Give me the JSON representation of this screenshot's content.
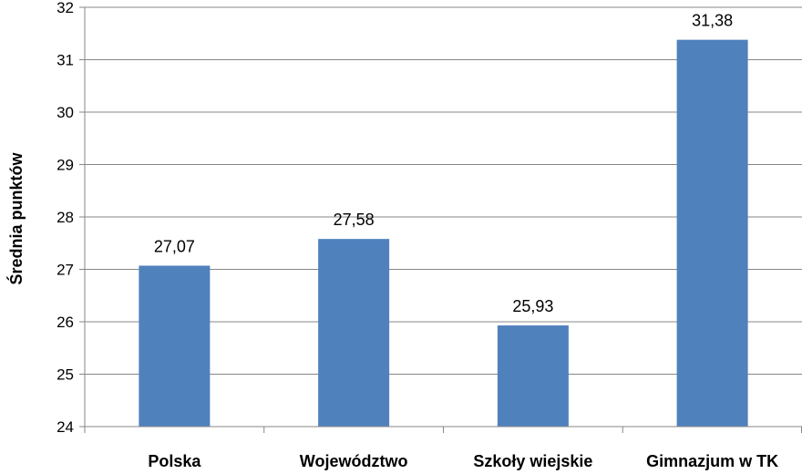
{
  "chart_data": {
    "type": "bar",
    "categories": [
      "Polska",
      "Województwo",
      "Szkoły wiejskie",
      "Gimnazjum w TK"
    ],
    "values": [
      27.07,
      27.58,
      25.93,
      31.38
    ],
    "data_labels": [
      "27,07",
      "27,58",
      "25,93",
      "31,38"
    ],
    "ylabel": "Średnia punktów",
    "xlabel": "",
    "title": "",
    "ylim": [
      24,
      32
    ],
    "y_ticks": [
      24,
      25,
      26,
      27,
      28,
      29,
      30,
      31,
      32
    ],
    "grid": true,
    "legend": "none",
    "bar_color": "#4F81BD"
  }
}
